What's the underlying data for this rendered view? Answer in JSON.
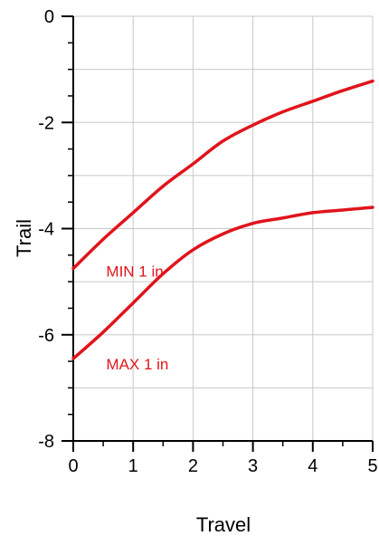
{
  "chart_data": {
    "type": "line",
    "xlabel": "Travel",
    "ylabel": "Trail",
    "xlim": [
      0,
      5
    ],
    "ylim": [
      -8,
      0
    ],
    "x_ticks": [
      "0",
      "1",
      "2",
      "3",
      "4",
      "5"
    ],
    "y_ticks": [
      "0",
      "-2",
      "-4",
      "-6",
      "-8"
    ],
    "grid": true,
    "series": [
      {
        "name": "MIN 1 in",
        "color": "#e0141b",
        "x": [
          0,
          0.5,
          1,
          1.5,
          2,
          2.5,
          3,
          3.5,
          4,
          4.5,
          5
        ],
        "y": [
          -4.75,
          -4.2,
          -3.7,
          -3.2,
          -2.78,
          -2.35,
          -2.05,
          -1.8,
          -1.6,
          -1.4,
          -1.22
        ]
      },
      {
        "name": "MAX 1 in",
        "color": "#e0141b",
        "x": [
          0,
          0.5,
          1,
          1.5,
          2,
          2.5,
          3,
          3.5,
          4,
          4.5,
          5
        ],
        "y": [
          -6.45,
          -5.95,
          -5.4,
          -4.85,
          -4.4,
          -4.1,
          -3.9,
          -3.8,
          -3.7,
          -3.65,
          -3.6
        ]
      }
    ]
  }
}
